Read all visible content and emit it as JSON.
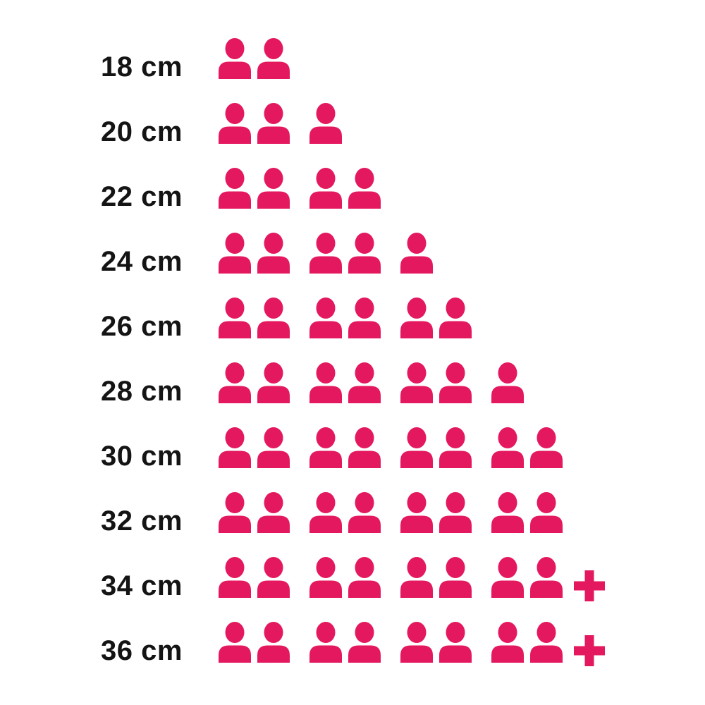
{
  "page": {
    "background_color": "#ffffff"
  },
  "chart_data": {
    "type": "bar",
    "variant": "pictogram",
    "unit_icon": "person-icon",
    "icon_color": "#E4185F",
    "label_color": "#141414",
    "title": "",
    "xlabel": "",
    "ylabel": "",
    "legend_position": "none",
    "group_size": 2,
    "categories": [
      "18 cm",
      "20 cm",
      "22 cm",
      "24 cm",
      "26 cm",
      "28 cm",
      "30 cm",
      "32 cm",
      "34 cm",
      "36 cm"
    ],
    "values": [
      2,
      3,
      4,
      5,
      6,
      7,
      8,
      8,
      8,
      8
    ],
    "overflow_plus": [
      false,
      false,
      false,
      false,
      false,
      false,
      false,
      false,
      true,
      true
    ],
    "overflow_symbol": "+"
  }
}
